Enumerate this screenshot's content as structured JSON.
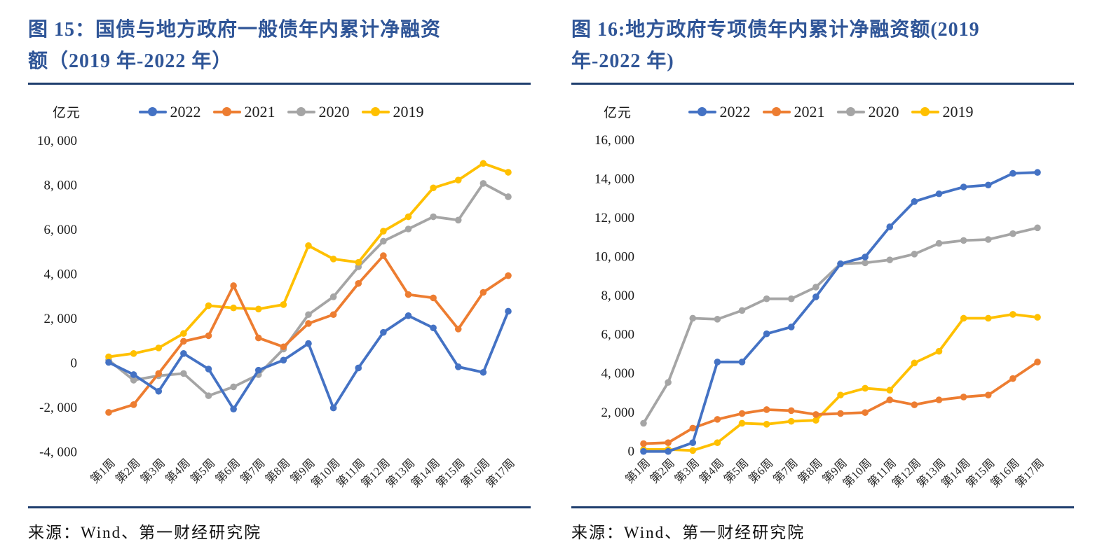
{
  "colors": {
    "title": "#2F5597",
    "rule": "#1F3E6E",
    "series_2022": "#4472C4",
    "series_2021": "#ED7D31",
    "series_2020": "#A5A5A5",
    "series_2019": "#FFC000"
  },
  "chart_data": [
    {
      "type": "line",
      "title": "图 15：国债与地方政府一般债年内累计净融资额（2019 年-2022 年）",
      "title_lines": [
        "图 15：国债与地方政府一般债年内累计净融资",
        "额（2019 年-2022 年）"
      ],
      "ylabel": "亿元",
      "source": "来源：Wind、第一财经研究院",
      "legend_position": "top",
      "grid": false,
      "categories": [
        "第1周",
        "第2周",
        "第3周",
        "第4周",
        "第5周",
        "第6周",
        "第7周",
        "第8周",
        "第9周",
        "第10周",
        "第11周",
        "第12周",
        "第13周",
        "第14周",
        "第15周",
        "第16周",
        "第17周"
      ],
      "ylim": [
        -4000,
        10000
      ],
      "yticks": {
        "values": [
          10000,
          8000,
          6000,
          4000,
          2000,
          0,
          -2000,
          -4000
        ],
        "labels": [
          "10, 000",
          "8, 000",
          "6, 000",
          "4, 000",
          "2, 000",
          "0",
          "-2, 000",
          "-4, 000"
        ]
      },
      "series": [
        {
          "name": "2022",
          "color": "#4472C4",
          "values": [
            0,
            -550,
            -1300,
            400,
            -300,
            -2100,
            -350,
            100,
            850,
            -2050,
            -250,
            1350,
            2100,
            1550,
            -200,
            -450,
            2300
          ]
        },
        {
          "name": "2021",
          "color": "#ED7D31",
          "values": [
            -2250,
            -1900,
            -500,
            950,
            1200,
            3450,
            1100,
            700,
            1750,
            2150,
            3550,
            4800,
            3050,
            2900,
            1500,
            3150,
            3900
          ]
        },
        {
          "name": "2020",
          "color": "#A5A5A5",
          "values": [
            100,
            -800,
            -600,
            -500,
            -1500,
            -1100,
            -550,
            600,
            2150,
            2950,
            4300,
            5450,
            6000,
            6550,
            6400,
            8050,
            7450
          ]
        },
        {
          "name": "2019",
          "color": "#FFC000",
          "values": [
            250,
            400,
            650,
            1300,
            2550,
            2450,
            2400,
            2600,
            5250,
            4650,
            4500,
            5900,
            6550,
            7850,
            8200,
            8950,
            8550
          ]
        }
      ]
    },
    {
      "type": "line",
      "title": "图 16:地方政府专项债年内累计净融资额(2019 年-2022 年)",
      "title_lines": [
        "图 16:地方政府专项债年内累计净融资额(2019",
        "年-2022 年)"
      ],
      "ylabel": "亿元",
      "source": "来源：Wind、第一财经研究院",
      "legend_position": "top",
      "grid": false,
      "categories": [
        "第1周",
        "第2周",
        "第3周",
        "第4周",
        "第5周",
        "第6周",
        "第7周",
        "第8周",
        "第9周",
        "第10周",
        "第11周",
        "第12周",
        "第13周",
        "第14周",
        "第15周",
        "第16周",
        "第17周"
      ],
      "ylim": [
        0,
        16000
      ],
      "yticks": {
        "values": [
          16000,
          14000,
          12000,
          10000,
          8000,
          6000,
          4000,
          2000,
          0
        ],
        "labels": [
          "16, 000",
          "14, 000",
          "12, 000",
          "10, 000",
          "8, 000",
          "6, 000",
          "4, 000",
          "2, 000",
          "0"
        ]
      },
      "series": [
        {
          "name": "2022",
          "color": "#4472C4",
          "values": [
            -50,
            -50,
            400,
            4550,
            4550,
            6000,
            6350,
            7900,
            9600,
            9950,
            11500,
            12800,
            13200,
            13550,
            13650,
            14250,
            14300
          ]
        },
        {
          "name": "2021",
          "color": "#ED7D31",
          "values": [
            350,
            400,
            1150,
            1600,
            1900,
            2100,
            2050,
            1850,
            1900,
            1950,
            2600,
            2350,
            2600,
            2750,
            2850,
            3700,
            4550
          ]
        },
        {
          "name": "2020",
          "color": "#A5A5A5",
          "values": [
            1400,
            3500,
            6800,
            6750,
            7200,
            7800,
            7800,
            8400,
            9600,
            9650,
            9800,
            10100,
            10650,
            10800,
            10850,
            11150,
            11450
          ]
        },
        {
          "name": "2019",
          "color": "#FFC000",
          "values": [
            50,
            50,
            0,
            400,
            1400,
            1350,
            1500,
            1550,
            2850,
            3200,
            3100,
            4500,
            5100,
            6800,
            6800,
            7000,
            6850
          ]
        }
      ]
    }
  ]
}
